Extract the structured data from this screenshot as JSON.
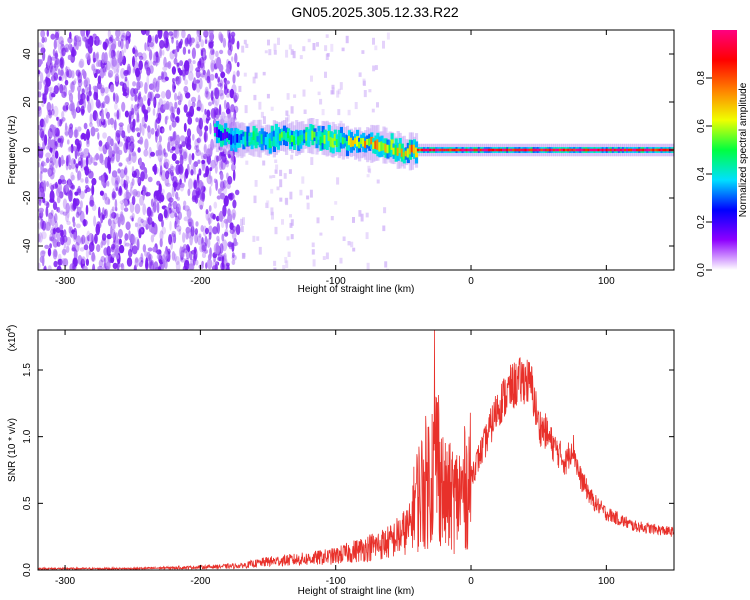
{
  "title": "GN05.2025.305.12.33.R22",
  "spectrogram": {
    "type": "heatmap",
    "xlabel": "Height of straight line (km)",
    "ylabel": "Frequency (Hz)",
    "xlim": [
      -320,
      150
    ],
    "ylim": [
      -50,
      50
    ],
    "xticks": [
      -300,
      -200,
      -100,
      0,
      100
    ],
    "yticks": [
      -40,
      -20,
      0,
      20,
      40
    ],
    "colorbar": {
      "label": "Normalized spectral amplitude",
      "range": [
        0.0,
        1.0
      ],
      "ticks": [
        "0.0",
        "0.2",
        "0.4",
        "0.6",
        "0.8"
      ],
      "tick_values": [
        0.0,
        0.2,
        0.4,
        0.6,
        0.8
      ],
      "colors": [
        "#ffffff",
        "#8e00ff",
        "#0000ff",
        "#00e0ff",
        "#00ff40",
        "#f0ff00",
        "#ff8000",
        "#ff0000",
        "#ff0080"
      ]
    },
    "noise_region_x": [
      -320,
      -172
    ],
    "signal_band": {
      "x": [
        -190,
        -180,
        -172,
        -160,
        -150,
        -140,
        -130,
        -120,
        -110,
        -100,
        -90,
        -80,
        -70,
        -60,
        -50,
        -40,
        -30,
        -20,
        0,
        50,
        100,
        150
      ],
      "center_hz": [
        7,
        6,
        4,
        5,
        4,
        6,
        5,
        6,
        5,
        4,
        3,
        2,
        3,
        1,
        -1,
        0,
        0,
        0,
        0,
        0,
        0,
        0
      ],
      "intensity": [
        0.2,
        0.3,
        0.35,
        0.4,
        0.4,
        0.45,
        0.45,
        0.45,
        0.5,
        0.5,
        0.55,
        0.65,
        0.7,
        0.6,
        0.65,
        0.8,
        0.95,
        0.9,
        0.95,
        0.9,
        0.95,
        0.9
      ]
    }
  },
  "snr": {
    "type": "line",
    "xlabel": "Height of straight line (km)",
    "ylabel": "SNR (10 * v/v)",
    "scale_label": "(x10",
    "scale_exp": "4",
    "scale_close": ")",
    "color": "#e8302a",
    "xlim": [
      -320,
      150
    ],
    "ylim": [
      0,
      1.8
    ],
    "xticks": [
      -300,
      -200,
      -100,
      0,
      100
    ],
    "yticks": [
      0.0,
      0.5,
      1.0,
      1.5
    ],
    "ytick_labels": [
      "0.0",
      "0.5",
      "1.0",
      "1.5"
    ],
    "envelope": {
      "x": [
        -320,
        -250,
        -200,
        -170,
        -150,
        -120,
        -100,
        -80,
        -60,
        -45,
        -40,
        -30,
        -25,
        -20,
        -10,
        0,
        10,
        20,
        30,
        40,
        45,
        50,
        55,
        60,
        70,
        75,
        80,
        90,
        100,
        120,
        150
      ],
      "y": [
        0.01,
        0.01,
        0.02,
        0.03,
        0.06,
        0.08,
        0.1,
        0.15,
        0.2,
        0.3,
        0.6,
        0.8,
        1.0,
        0.6,
        0.6,
        0.75,
        1.0,
        1.3,
        1.45,
        1.52,
        1.45,
        1.15,
        1.1,
        1.0,
        0.85,
        1.0,
        0.75,
        0.55,
        0.45,
        0.35,
        0.3
      ]
    },
    "spike": {
      "x": -27,
      "y": 1.8
    }
  }
}
